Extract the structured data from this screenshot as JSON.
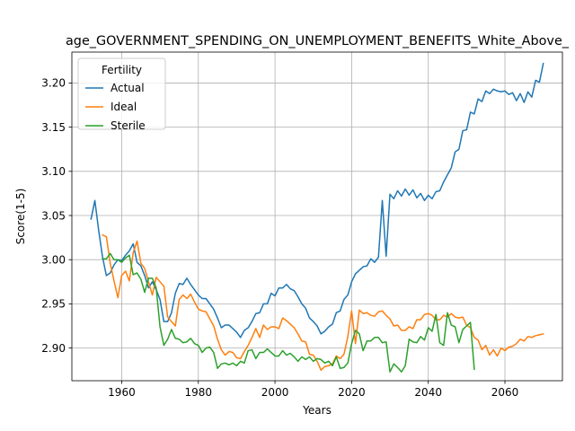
{
  "chart_data": {
    "type": "line",
    "title": "age_GOVERNMENT_SPENDING_ON_UNEMPLOYMENT_BENEFITS_White_Above_",
    "xlabel": "Years",
    "ylabel": "Score(1-5)",
    "xlim": [
      1947,
      2075
    ],
    "ylim": [
      2.863,
      3.235
    ],
    "xticks": [
      1960,
      1980,
      2000,
      2020,
      2040,
      2060
    ],
    "yticks": [
      2.9,
      2.95,
      3.0,
      3.05,
      3.1,
      3.15,
      3.2
    ],
    "ytick_labels": [
      "2.90",
      "2.95",
      "3.00",
      "3.05",
      "3.10",
      "3.15",
      "3.20"
    ],
    "grid": true,
    "legend": {
      "title": "Fertility",
      "position": "top-left"
    },
    "series": [
      {
        "name": "Actual",
        "color": "#1f77b4",
        "x": [
          1952,
          1953,
          1954,
          1955,
          1956,
          1957,
          1958,
          1959,
          1960,
          1961,
          1962,
          1963,
          1964,
          1965,
          1966,
          1967,
          1968,
          1969,
          1970,
          1971,
          1972,
          1973,
          1974,
          1975,
          1976,
          1977,
          1978,
          1979,
          1980,
          1981,
          1982,
          1983,
          1984,
          1985,
          1986,
          1987,
          1988,
          1989,
          1990,
          1991,
          1992,
          1993,
          1994,
          1995,
          1996,
          1997,
          1998,
          1999,
          2000,
          2001,
          2002,
          2003,
          2004,
          2005,
          2006,
          2007,
          2008,
          2009,
          2010,
          2011,
          2012,
          2013,
          2014,
          2015,
          2016,
          2017,
          2018,
          2019,
          2020,
          2021,
          2022,
          2023,
          2024,
          2025,
          2026,
          2027,
          2028,
          2029,
          2030,
          2031,
          2032,
          2033,
          2034,
          2035,
          2036,
          2037,
          2038,
          2039,
          2040,
          2041,
          2042,
          2043,
          2044,
          2045,
          2046,
          2047,
          2048,
          2049,
          2050,
          2051,
          2052,
          2053,
          2054,
          2055,
          2056,
          2057,
          2058,
          2059,
          2060,
          2061,
          2062,
          2063,
          2064,
          2065,
          2066,
          2067,
          2068,
          2069,
          2070
        ],
        "values": [
          3.046,
          3.067,
          3.033,
          3.003,
          2.982,
          2.985,
          2.994,
          3.0,
          2.999,
          3.005,
          3.01,
          3.018,
          2.997,
          2.993,
          2.982,
          2.968,
          2.975,
          2.966,
          2.955,
          2.93,
          2.93,
          2.94,
          2.962,
          2.973,
          2.972,
          2.979,
          2.972,
          2.966,
          2.96,
          2.956,
          2.956,
          2.95,
          2.944,
          2.934,
          2.923,
          2.926,
          2.926,
          2.922,
          2.918,
          2.912,
          2.92,
          2.923,
          2.93,
          2.939,
          2.94,
          2.95,
          2.95,
          2.962,
          2.959,
          2.968,
          2.968,
          2.972,
          2.967,
          2.965,
          2.958,
          2.95,
          2.945,
          2.934,
          2.93,
          2.925,
          2.916,
          2.919,
          2.924,
          2.927,
          2.94,
          2.942,
          2.955,
          2.96,
          2.975,
          2.984,
          2.988,
          2.992,
          2.993,
          3.001,
          2.997,
          3.003,
          3.067,
          3.004,
          3.074,
          3.069,
          3.078,
          3.072,
          3.08,
          3.073,
          3.079,
          3.07,
          3.075,
          3.067,
          3.073,
          3.069,
          3.077,
          3.078,
          3.088,
          3.096,
          3.104,
          3.122,
          3.125,
          3.146,
          3.147,
          3.167,
          3.165,
          3.182,
          3.179,
          3.191,
          3.188,
          3.193,
          3.191,
          3.19,
          3.191,
          3.187,
          3.189,
          3.18,
          3.188,
          3.178,
          3.19,
          3.184,
          3.203,
          3.201,
          3.222
        ]
      },
      {
        "name": "Ideal",
        "color": "#ff7f0e",
        "x": [
          1955,
          1956,
          1957,
          1958,
          1959,
          1960,
          1961,
          1962,
          1963,
          1964,
          1965,
          1966,
          1967,
          1968,
          1969,
          1970,
          1971,
          1972,
          1973,
          1974,
          1975,
          1976,
          1977,
          1978,
          1979,
          1980,
          1981,
          1982,
          1983,
          1984,
          1985,
          1986,
          1987,
          1988,
          1989,
          1990,
          1991,
          1992,
          1993,
          1994,
          1995,
          1996,
          1997,
          1998,
          1999,
          2000,
          2001,
          2002,
          2003,
          2004,
          2005,
          2006,
          2007,
          2008,
          2009,
          2010,
          2011,
          2012,
          2013,
          2014,
          2015,
          2016,
          2017,
          2018,
          2019,
          2020,
          2021,
          2022,
          2023,
          2024,
          2025,
          2026,
          2027,
          2028,
          2029,
          2030,
          2031,
          2032,
          2033,
          2034,
          2035,
          2036,
          2037,
          2038,
          2039,
          2040,
          2041,
          2042,
          2043,
          2044,
          2045,
          2046,
          2047,
          2048,
          2049,
          2050,
          2051,
          2052,
          2053,
          2054,
          2055,
          2056,
          2057,
          2058,
          2059,
          2060,
          2061,
          2062,
          2063,
          2064,
          2065,
          2066,
          2067,
          2068,
          2069,
          2070
        ],
        "values": [
          3.028,
          3.026,
          2.996,
          2.976,
          2.957,
          2.982,
          2.987,
          2.976,
          3.008,
          3.021,
          2.996,
          2.99,
          2.975,
          2.96,
          2.98,
          2.975,
          2.97,
          2.935,
          2.93,
          2.925,
          2.955,
          2.96,
          2.956,
          2.961,
          2.952,
          2.944,
          2.942,
          2.941,
          2.933,
          2.925,
          2.91,
          2.898,
          2.892,
          2.896,
          2.895,
          2.889,
          2.888,
          2.896,
          2.903,
          2.912,
          2.922,
          2.912,
          2.926,
          2.921,
          2.924,
          2.924,
          2.922,
          2.934,
          2.931,
          2.927,
          2.923,
          2.916,
          2.908,
          2.907,
          2.893,
          2.892,
          2.885,
          2.875,
          2.879,
          2.88,
          2.882,
          2.891,
          2.888,
          2.893,
          2.913,
          2.942,
          2.905,
          2.943,
          2.939,
          2.94,
          2.937,
          2.936,
          2.941,
          2.942,
          2.937,
          2.933,
          2.925,
          2.926,
          2.92,
          2.92,
          2.924,
          2.922,
          2.932,
          2.932,
          2.938,
          2.939,
          2.937,
          2.932,
          2.932,
          2.937,
          2.935,
          2.939,
          2.935,
          2.934,
          2.935,
          2.926,
          2.923,
          2.912,
          2.909,
          2.898,
          2.903,
          2.892,
          2.898,
          2.891,
          2.9,
          2.897,
          2.901,
          2.902,
          2.905,
          2.91,
          2.908,
          2.913,
          2.912,
          2.914,
          2.915,
          2.916
        ]
      },
      {
        "name": "Sterile",
        "color": "#2ca02c",
        "x": [
          1955,
          1956,
          1957,
          1958,
          1959,
          1960,
          1961,
          1962,
          1963,
          1964,
          1965,
          1966,
          1967,
          1968,
          1969,
          1970,
          1971,
          1972,
          1973,
          1974,
          1975,
          1976,
          1977,
          1978,
          1979,
          1980,
          1981,
          1982,
          1983,
          1984,
          1985,
          1986,
          1987,
          1988,
          1989,
          1990,
          1991,
          1992,
          1993,
          1994,
          1995,
          1996,
          1997,
          1998,
          1999,
          2000,
          2001,
          2002,
          2003,
          2004,
          2005,
          2006,
          2007,
          2008,
          2009,
          2010,
          2011,
          2012,
          2013,
          2014,
          2015,
          2016,
          2017,
          2018,
          2019,
          2020,
          2021,
          2022,
          2023,
          2024,
          2025,
          2026,
          2027,
          2028,
          2029,
          2030,
          2031,
          2032,
          2033,
          2034,
          2035,
          2036,
          2037,
          2038,
          2039,
          2040,
          2041,
          2042,
          2043,
          2044,
          2045,
          2046,
          2047,
          2048,
          2049,
          2050,
          2051,
          2052
        ],
        "values": [
          3.001,
          3.001,
          3.007,
          3.0,
          3.0,
          2.997,
          3.002,
          3.005,
          2.983,
          2.985,
          2.978,
          2.963,
          2.979,
          2.979,
          2.968,
          2.924,
          2.903,
          2.91,
          2.921,
          2.911,
          2.91,
          2.906,
          2.907,
          2.911,
          2.905,
          2.903,
          2.895,
          2.9,
          2.901,
          2.895,
          2.877,
          2.882,
          2.883,
          2.881,
          2.883,
          2.88,
          2.885,
          2.883,
          2.897,
          2.898,
          2.888,
          2.895,
          2.895,
          2.899,
          2.895,
          2.891,
          2.891,
          2.897,
          2.892,
          2.894,
          2.89,
          2.885,
          2.89,
          2.887,
          2.89,
          2.885,
          2.888,
          2.887,
          2.883,
          2.885,
          2.88,
          2.89,
          2.877,
          2.878,
          2.883,
          2.905,
          2.92,
          2.916,
          2.897,
          2.908,
          2.908,
          2.912,
          2.912,
          2.906,
          2.907,
          2.873,
          2.882,
          2.878,
          2.873,
          2.88,
          2.91,
          2.907,
          2.906,
          2.913,
          2.909,
          2.923,
          2.919,
          2.938,
          2.906,
          2.903,
          2.94,
          2.926,
          2.924,
          2.906,
          2.921,
          2.925,
          2.929,
          2.876
        ]
      }
    ]
  }
}
